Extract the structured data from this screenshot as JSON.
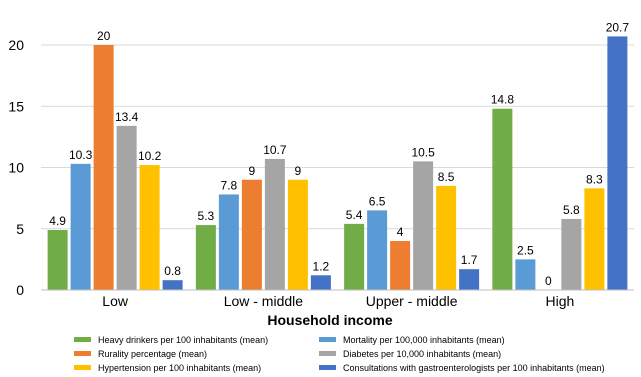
{
  "chart_data": {
    "type": "bar",
    "title": "",
    "xlabel": "Household income",
    "ylabel": "",
    "ylim": [
      0,
      20
    ],
    "yticks": [
      0,
      5,
      10,
      15,
      20
    ],
    "grid": true,
    "legend_position": "bottom",
    "categories": [
      "Low",
      "Low - middle",
      "Upper - middle",
      "High"
    ],
    "series": [
      {
        "name": "Heavy drinkers per 100 inhabitants (mean)",
        "color": "#70ad47",
        "values": [
          4.9,
          5.3,
          5.4,
          14.8
        ]
      },
      {
        "name": "Mortality per 100,000 inhabitants (mean)",
        "color": "#5b9bd5",
        "values": [
          10.3,
          7.8,
          6.5,
          2.5
        ]
      },
      {
        "name": "Rurality percentage (mean)",
        "color": "#ed7d31",
        "values": [
          20,
          9,
          4,
          0
        ]
      },
      {
        "name": "Diabetes per 10,000 inhabitants (mean)",
        "color": "#a5a5a5",
        "values": [
          13.4,
          10.7,
          10.5,
          5.8
        ]
      },
      {
        "name": "Hypertension per 100 inhabitants (mean)",
        "color": "#ffc000",
        "values": [
          10.2,
          9,
          8.5,
          8.3
        ]
      },
      {
        "name": "Consultations with gastroenterologists per 100 inhabitants (mean)",
        "color": "#4472c4",
        "values": [
          0.8,
          1.2,
          1.7,
          20.7
        ]
      }
    ]
  }
}
